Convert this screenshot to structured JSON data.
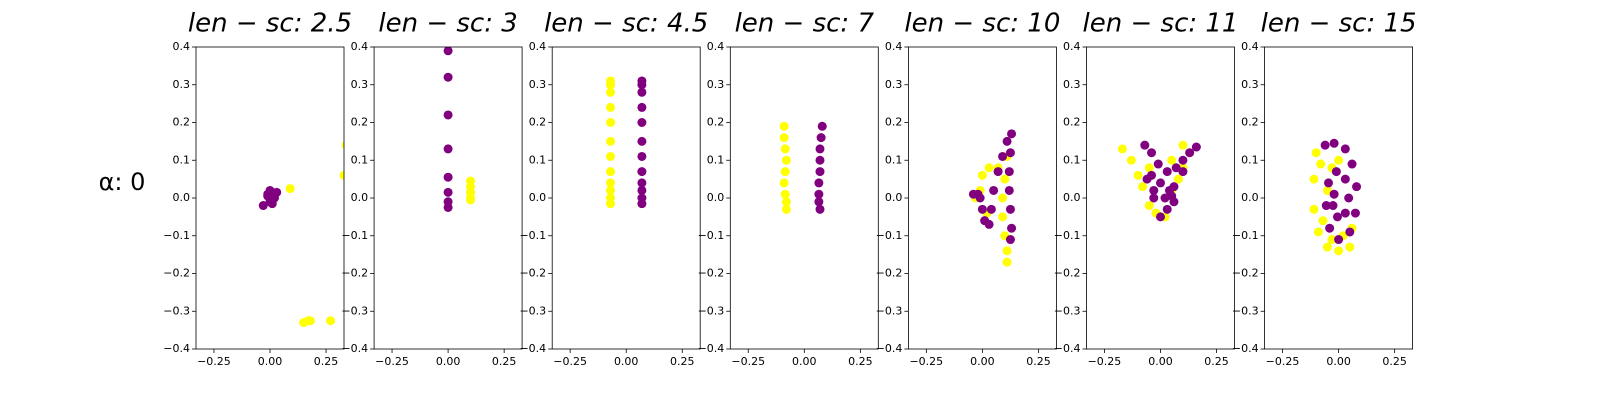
{
  "row_label": "α: 0",
  "chart_data": [
    {
      "type": "scatter",
      "title": "len − sc: 2.5",
      "xlim": [
        -0.33,
        0.33
      ],
      "ylim": [
        -0.4,
        0.4
      ],
      "xticks": [
        {
          "value": -0.25,
          "label": "−0.25"
        },
        {
          "value": 0,
          "label": "0.00"
        },
        0.25
      ],
      "yticks": [
        {
          "value": -0.4,
          "label": "−0.4"
        },
        {
          "value": -0.3,
          "label": "−0.3"
        },
        {
          "value": -0.2,
          "label": "−0.2"
        },
        {
          "value": -0.1,
          "label": "−0.1"
        },
        {
          "value": 0,
          "label": "0.0"
        },
        0.1,
        0.2,
        0.3,
        0.4
      ],
      "series": [
        {
          "color": "#ffff00",
          "x": [
            0.09,
            0.15,
            0.17,
            0.18,
            0.27,
            0.33,
            0.34
          ],
          "values": [
            0.025,
            -0.33,
            -0.325,
            -0.325,
            -0.325,
            0.06,
            0.14
          ]
        },
        {
          "color": "#800080",
          "x": [
            -0.03,
            -0.01,
            0,
            0.01,
            0.02,
            0.03,
            0,
            0.01,
            -0.01
          ],
          "values": [
            -0.02,
            0.005,
            0.02,
            0.01,
            0,
            0.015,
            -0.01,
            -0.015,
            0.01
          ]
        }
      ]
    },
    {
      "type": "scatter",
      "title": "len − sc: 3",
      "xlim": [
        -0.33,
        0.33
      ],
      "ylim": [
        -0.4,
        0.4
      ],
      "xticks": [
        {
          "value": -0.25,
          "label": "−0.25"
        },
        {
          "value": 0,
          "label": "0.00"
        },
        0.25
      ],
      "yticks": [
        {
          "value": -0.4,
          "label": "−0.4"
        },
        {
          "value": -0.3,
          "label": "−0.3"
        },
        {
          "value": -0.2,
          "label": "−0.2"
        },
        {
          "value": -0.1,
          "label": "−0.1"
        },
        {
          "value": 0,
          "label": "0.0"
        },
        0.1,
        0.2,
        0.3,
        0.4
      ],
      "series": [
        {
          "color": "#ffff00",
          "x": [
            0.1,
            0.1,
            0.1,
            0.1,
            0.1
          ],
          "values": [
            0.045,
            0.03,
            0.015,
            0,
            -0.005
          ]
        },
        {
          "color": "#800080",
          "x": [
            0,
            0,
            0,
            0,
            0,
            0,
            0,
            0
          ],
          "values": [
            0.39,
            0.32,
            0.22,
            0.13,
            0.055,
            0.015,
            -0.01,
            -0.025
          ]
        }
      ]
    },
    {
      "type": "scatter",
      "title": "len − sc: 4.5",
      "xlim": [
        -0.33,
        0.33
      ],
      "ylim": [
        -0.4,
        0.4
      ],
      "xticks": [
        {
          "value": -0.25,
          "label": "−0.25"
        },
        {
          "value": 0,
          "label": "0.00"
        },
        0.25
      ],
      "yticks": [
        {
          "value": -0.4,
          "label": "−0.4"
        },
        {
          "value": -0.3,
          "label": "−0.3"
        },
        {
          "value": -0.2,
          "label": "−0.2"
        },
        {
          "value": -0.1,
          "label": "−0.1"
        },
        {
          "value": 0,
          "label": "0.0"
        },
        0.1,
        0.2,
        0.3,
        0.4
      ],
      "series": [
        {
          "color": "#ffff00",
          "x": [
            -0.07,
            -0.07,
            -0.07,
            -0.07,
            -0.07,
            -0.07,
            -0.07,
            -0.07,
            -0.07,
            -0.07,
            -0.07,
            -0.07
          ],
          "values": [
            0.31,
            0.3,
            0.28,
            0.24,
            0.2,
            0.15,
            0.11,
            0.07,
            0.04,
            0.02,
            0,
            -0.015
          ]
        },
        {
          "color": "#800080",
          "x": [
            0.07,
            0.07,
            0.07,
            0.07,
            0.07,
            0.07,
            0.07,
            0.07,
            0.07,
            0.07,
            0.07,
            0.07
          ],
          "values": [
            0.31,
            0.3,
            0.28,
            0.24,
            0.2,
            0.15,
            0.11,
            0.07,
            0.04,
            0.02,
            0,
            -0.015
          ]
        }
      ]
    },
    {
      "type": "scatter",
      "title": "len − sc: 7",
      "xlim": [
        -0.33,
        0.33
      ],
      "ylim": [
        -0.4,
        0.4
      ],
      "xticks": [
        {
          "value": -0.25,
          "label": "−0.25"
        },
        {
          "value": 0,
          "label": "0.00"
        },
        0.25
      ],
      "yticks": [
        {
          "value": -0.4,
          "label": "−0.4"
        },
        {
          "value": -0.3,
          "label": "−0.3"
        },
        {
          "value": -0.2,
          "label": "−0.2"
        },
        {
          "value": -0.1,
          "label": "−0.1"
        },
        {
          "value": 0,
          "label": "0.0"
        },
        0.1,
        0.2,
        0.3,
        0.4
      ],
      "series": [
        {
          "color": "#ffff00",
          "x": [
            -0.09,
            -0.09,
            -0.085,
            -0.08,
            -0.085,
            -0.09,
            -0.085,
            -0.08,
            -0.08
          ],
          "values": [
            0.19,
            0.16,
            0.13,
            0.1,
            0.07,
            0.04,
            0.01,
            -0.01,
            -0.03
          ]
        },
        {
          "color": "#800080",
          "x": [
            0.08,
            0.075,
            0.07,
            0.07,
            0.07,
            0.065,
            0.065,
            0.065,
            0.07
          ],
          "values": [
            0.19,
            0.16,
            0.13,
            0.1,
            0.07,
            0.04,
            0.01,
            -0.01,
            -0.03
          ]
        }
      ]
    },
    {
      "type": "scatter",
      "title": "len − sc: 10",
      "xlim": [
        -0.33,
        0.33
      ],
      "ylim": [
        -0.4,
        0.4
      ],
      "xticks": [
        {
          "value": -0.25,
          "label": "−0.25"
        },
        {
          "value": 0,
          "label": "0.00"
        },
        0.25
      ],
      "yticks": [
        {
          "value": -0.4,
          "label": "−0.4"
        },
        {
          "value": -0.3,
          "label": "−0.3"
        },
        {
          "value": -0.2,
          "label": "−0.2"
        },
        {
          "value": -0.1,
          "label": "−0.1"
        },
        {
          "value": 0,
          "label": "0.0"
        },
        0.1,
        0.2,
        0.3,
        0.4
      ],
      "series": [
        {
          "color": "#ffff00",
          "x": [
            -0.03,
            0,
            0.03,
            0.07,
            0.11,
            0.1,
            0.09,
            0.09,
            0.1,
            0.11,
            0.11,
            -0.01,
            0.02
          ],
          "values": [
            0,
            0.06,
            0.08,
            0.08,
            0.11,
            0.05,
            0,
            -0.05,
            -0.1,
            -0.14,
            -0.17,
            0.02,
            -0.04
          ]
        },
        {
          "color": "#800080",
          "x": [
            -0.04,
            -0.02,
            -0.01,
            0,
            0.01,
            0.03,
            0.04,
            0.05,
            0.07,
            0.09,
            0.11,
            0.13,
            0.125,
            0.12,
            0.12,
            0.125,
            0.13,
            0.125
          ],
          "values": [
            0.01,
            0.01,
            0,
            -0.03,
            -0.06,
            -0.07,
            -0.03,
            0.02,
            0.07,
            0.11,
            0.15,
            0.17,
            0.12,
            0.07,
            0.02,
            -0.03,
            -0.08,
            -0.11
          ]
        }
      ]
    },
    {
      "type": "scatter",
      "title": "len − sc: 11",
      "xlim": [
        -0.33,
        0.33
      ],
      "ylim": [
        -0.4,
        0.4
      ],
      "xticks": [
        {
          "value": -0.25,
          "label": "−0.25"
        },
        {
          "value": 0,
          "label": "0.00"
        },
        0.25
      ],
      "yticks": [
        {
          "value": -0.4,
          "label": "−0.4"
        },
        {
          "value": -0.3,
          "label": "−0.3"
        },
        {
          "value": -0.2,
          "label": "−0.2"
        },
        {
          "value": -0.1,
          "label": "−0.1"
        },
        {
          "value": 0,
          "label": "0.0"
        },
        0.1,
        0.2,
        0.3,
        0.4
      ],
      "series": [
        {
          "color": "#ffff00",
          "x": [
            -0.17,
            -0.13,
            -0.1,
            -0.05,
            0.05,
            0.1,
            0.13,
            0.08,
            0.05,
            -0.05,
            -0.02,
            0.02,
            -0.08,
            0.1
          ],
          "values": [
            0.13,
            0.1,
            0.06,
            0.08,
            0.1,
            0.14,
            0.12,
            0.05,
            0.02,
            -0.02,
            -0.04,
            -0.05,
            0.03,
            0.08
          ]
        },
        {
          "color": "#800080",
          "x": [
            -0.07,
            -0.04,
            -0.01,
            0.03,
            0.07,
            0.1,
            0.13,
            0.16,
            0.1,
            0.06,
            0.02,
            -0.03,
            -0.06,
            -0.04,
            0,
            0.04,
            0.06,
            0.03,
            0,
            -0.03,
            0.05
          ],
          "values": [
            0.14,
            0.12,
            0.09,
            0.07,
            0.08,
            0.1,
            0.12,
            0.135,
            0.07,
            0.03,
            0,
            0.02,
            0.05,
            0.06,
            0.04,
            0.02,
            -0.01,
            -0.03,
            -0.05,
            0,
            0.005
          ]
        }
      ]
    },
    {
      "type": "scatter",
      "title": "len − sc: 15",
      "xlim": [
        -0.33,
        0.33
      ],
      "ylim": [
        -0.4,
        0.4
      ],
      "xticks": [
        {
          "value": -0.25,
          "label": "−0.25"
        },
        {
          "value": 0,
          "label": "0.00"
        },
        0.25
      ],
      "yticks": [
        {
          "value": -0.4,
          "label": "−0.4"
        },
        {
          "value": -0.3,
          "label": "−0.3"
        },
        {
          "value": -0.2,
          "label": "−0.2"
        },
        {
          "value": -0.1,
          "label": "−0.1"
        },
        {
          "value": 0,
          "label": "0.0"
        },
        0.1,
        0.2,
        0.3,
        0.4
      ],
      "series": [
        {
          "color": "#ffff00",
          "x": [
            -0.1,
            -0.11,
            -0.11,
            -0.09,
            -0.05,
            0,
            0.05,
            0.06,
            -0.08,
            -0.07,
            -0.03,
            0.02,
            -0.05,
            -0.03,
            0
          ],
          "values": [
            0.12,
            0.05,
            -0.03,
            -0.09,
            -0.13,
            -0.14,
            -0.13,
            -0.08,
            0.09,
            -0.06,
            -0.11,
            -0.1,
            0.02,
            0.08,
            0.1
          ]
        },
        {
          "color": "#800080",
          "x": [
            -0.06,
            -0.02,
            0.03,
            0.06,
            0.08,
            0.075,
            0.05,
            0,
            -0.04,
            -0.055,
            -0.045,
            -0.01,
            0.03,
            0.045,
            0.03,
            -0.005,
            -0.025,
            -0.02
          ],
          "values": [
            0.14,
            0.145,
            0.13,
            0.09,
            0.03,
            -0.04,
            -0.09,
            -0.11,
            -0.08,
            -0.02,
            0.04,
            0.07,
            0.05,
            0,
            -0.04,
            -0.05,
            -0.02,
            0.01
          ]
        }
      ]
    }
  ]
}
